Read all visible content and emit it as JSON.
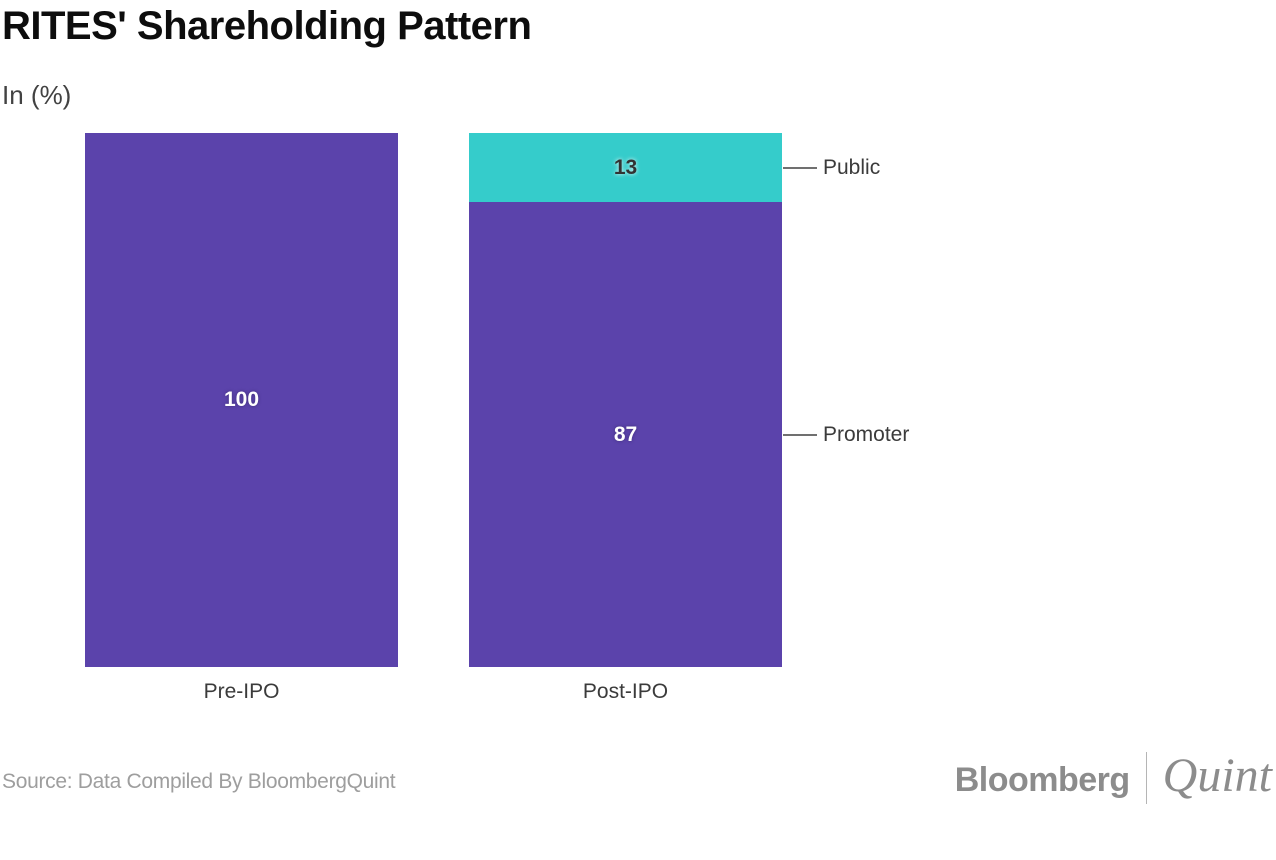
{
  "header": {
    "title": "RITES' Shareholding Pattern",
    "subtitle": "In (%)"
  },
  "chart_data": {
    "type": "bar",
    "stacked": true,
    "title": "RITES' Shareholding Pattern",
    "units_label": "In (%)",
    "categories": [
      "Pre-IPO",
      "Post-IPO"
    ],
    "series": [
      {
        "name": "Public",
        "color": "#35cccb",
        "label_style": "on-light",
        "values": [
          0,
          13
        ]
      },
      {
        "name": "Promoter",
        "color": "#5b43ab",
        "label_style": "on-dark",
        "values": [
          100,
          87
        ]
      }
    ],
    "total": 100,
    "ylim": [
      0,
      100
    ],
    "grid": false,
    "legend_position": "right-callouts",
    "annotations": [
      {
        "label": "Public",
        "category_index": 1,
        "series": "Public"
      },
      {
        "label": "Promoter",
        "category_index": 1,
        "series": "Promoter"
      }
    ]
  },
  "footer": {
    "source": "Source: Data Compiled By BloombergQuint",
    "logo": {
      "bloomberg": "Bloomberg",
      "quint": "Quint"
    }
  },
  "colors": {
    "promoter": "#5b43ab",
    "public": "#35cccb",
    "callout_line": "#707070",
    "text_dark": "#3b3b3b",
    "source_gray": "#9e9e9e",
    "logo_gray": "#8c8c8c"
  }
}
